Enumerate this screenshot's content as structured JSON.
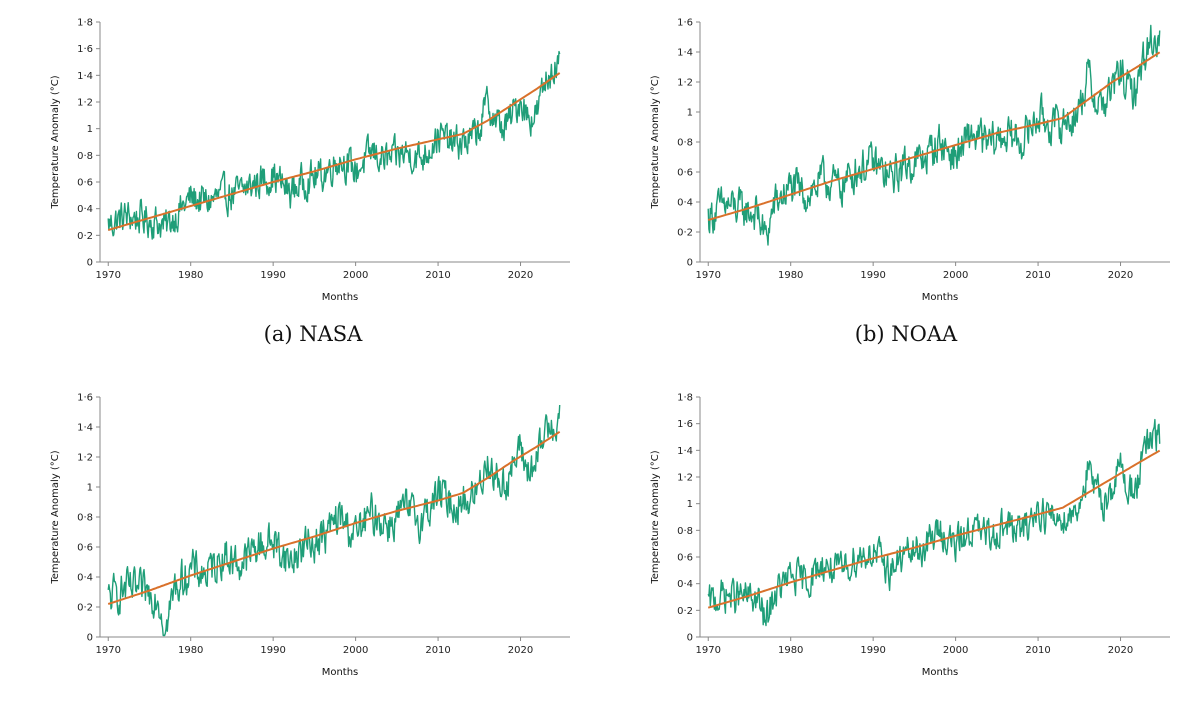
{
  "chart_data": [
    {
      "type": "line",
      "caption": "(a) NASA",
      "xlabel": "Months",
      "ylabel": "Temperature Anomaly (°C)",
      "xlim": [
        1969,
        2026
      ],
      "ylim": [
        0,
        1.8
      ],
      "xticks": [
        "1970",
        "1980",
        "1990",
        "2000",
        "2010",
        "2020"
      ],
      "yticks": [
        "0",
        "0·2",
        "0·4",
        "0·6",
        "0·8",
        "1",
        "1·2",
        "1·4",
        "1·6",
        "1·8"
      ],
      "series": [
        {
          "color": "#1f9e78",
          "x": [
            1970,
            1972,
            1974,
            1976,
            1977,
            1978,
            1980,
            1982,
            1984,
            1986,
            1988,
            1990,
            1992,
            1994,
            1996,
            1998,
            2000,
            2002,
            2004,
            2006,
            2008,
            2010,
            2012,
            2014,
            2015,
            2016,
            2017,
            2018,
            2019,
            2020,
            2021,
            2022,
            2023,
            2024,
            2024.8
          ],
          "y": [
            0.28,
            0.34,
            0.33,
            0.3,
            0.26,
            0.34,
            0.48,
            0.45,
            0.5,
            0.52,
            0.6,
            0.65,
            0.52,
            0.62,
            0.65,
            0.78,
            0.68,
            0.82,
            0.76,
            0.82,
            0.78,
            0.95,
            0.88,
            0.92,
            1.0,
            1.2,
            1.05,
            1.0,
            1.1,
            1.22,
            1.08,
            1.12,
            1.35,
            1.48,
            1.45
          ]
        },
        {
          "color": "#d9712b",
          "x": [
            1970,
            1975,
            1980,
            1985,
            1990,
            1995,
            2000,
            2005,
            2010,
            2013,
            2016,
            2019,
            2022,
            2024.8
          ],
          "y": [
            0.24,
            0.33,
            0.42,
            0.51,
            0.6,
            0.68,
            0.77,
            0.85,
            0.92,
            0.96,
            1.06,
            1.18,
            1.3,
            1.42
          ]
        }
      ]
    },
    {
      "type": "line",
      "caption": "(b) NOAA",
      "xlabel": "Months",
      "ylabel": "Temperature Anomaly (°C)",
      "xlim": [
        1969,
        2026
      ],
      "ylim": [
        0,
        1.6
      ],
      "xticks": [
        "1970",
        "1980",
        "1990",
        "2000",
        "2010",
        "2020"
      ],
      "yticks": [
        "0",
        "0·2",
        "0·4",
        "0·6",
        "0·8",
        "1",
        "1·2",
        "1·4",
        "1·6"
      ],
      "series": [
        {
          "color": "#1f9e78",
          "x": [
            1970,
            1972,
            1974,
            1976,
            1977,
            1978,
            1980,
            1982,
            1984,
            1986,
            1988,
            1990,
            1992,
            1994,
            1996,
            1998,
            2000,
            2002,
            2004,
            2006,
            2008,
            2010,
            2012,
            2014,
            2015,
            2016,
            2017,
            2018,
            2019,
            2020,
            2021,
            2022,
            2023,
            2024,
            2024.8
          ],
          "y": [
            0.3,
            0.38,
            0.35,
            0.32,
            0.15,
            0.38,
            0.5,
            0.45,
            0.55,
            0.5,
            0.62,
            0.66,
            0.55,
            0.65,
            0.68,
            0.8,
            0.7,
            0.85,
            0.78,
            0.85,
            0.8,
            0.98,
            0.9,
            0.95,
            1.02,
            1.25,
            1.08,
            1.05,
            1.15,
            1.28,
            1.12,
            1.18,
            1.4,
            1.5,
            1.48
          ]
        },
        {
          "color": "#d9712b",
          "x": [
            1970,
            1975,
            1980,
            1985,
            1990,
            1995,
            2000,
            2005,
            2010,
            2013,
            2016,
            2019,
            2022,
            2024.8
          ],
          "y": [
            0.28,
            0.36,
            0.45,
            0.54,
            0.62,
            0.7,
            0.78,
            0.86,
            0.92,
            0.96,
            1.08,
            1.2,
            1.3,
            1.4
          ]
        }
      ]
    },
    {
      "type": "line",
      "caption": "",
      "xlabel": "Months",
      "ylabel": "Temperature Anomaly (°C)",
      "xlim": [
        1969,
        2026
      ],
      "ylim": [
        0,
        1.6
      ],
      "xticks": [
        "1970",
        "1980",
        "1990",
        "2000",
        "2010",
        "2020"
      ],
      "yticks": [
        "0",
        "0·2",
        "0·4",
        "0·6",
        "0·8",
        "1",
        "1·2",
        "1·4",
        "1·6"
      ],
      "series": [
        {
          "color": "#1f9e78",
          "x": [
            1970,
            1972,
            1974,
            1976,
            1977,
            1978,
            1980,
            1982,
            1984,
            1986,
            1988,
            1990,
            1992,
            1994,
            1996,
            1998,
            2000,
            2002,
            2004,
            2006,
            2008,
            2010,
            2012,
            2014,
            2015,
            2016,
            2017,
            2018,
            2019,
            2020,
            2021,
            2022,
            2023,
            2024,
            2024.8
          ],
          "y": [
            0.25,
            0.32,
            0.3,
            0.28,
            0.05,
            0.32,
            0.45,
            0.42,
            0.55,
            0.48,
            0.6,
            0.64,
            0.5,
            0.62,
            0.66,
            0.8,
            0.68,
            0.82,
            0.75,
            0.85,
            0.78,
            0.96,
            0.88,
            0.92,
            1.0,
            1.2,
            1.05,
            1.02,
            1.12,
            1.25,
            1.1,
            1.15,
            1.38,
            1.45,
            1.42
          ]
        },
        {
          "color": "#d9712b",
          "x": [
            1970,
            1975,
            1980,
            1985,
            1990,
            1995,
            2000,
            2005,
            2010,
            2013,
            2016,
            2019,
            2022,
            2024.8
          ],
          "y": [
            0.22,
            0.31,
            0.41,
            0.5,
            0.59,
            0.67,
            0.76,
            0.84,
            0.91,
            0.96,
            1.06,
            1.17,
            1.27,
            1.37
          ]
        }
      ]
    },
    {
      "type": "line",
      "caption": "",
      "xlabel": "Months",
      "ylabel": "Temperature Anomaly (°C)",
      "xlim": [
        1969,
        2026
      ],
      "ylim": [
        0,
        1.8
      ],
      "xticks": [
        "1970",
        "1980",
        "1990",
        "2000",
        "2010",
        "2020"
      ],
      "yticks": [
        "0",
        "0·2",
        "0·4",
        "0·6",
        "0·8",
        "1",
        "1·2",
        "1·4",
        "1·6",
        "1·8"
      ],
      "series": [
        {
          "color": "#1f9e78",
          "x": [
            1970,
            1972,
            1974,
            1976,
            1977,
            1978,
            1980,
            1982,
            1984,
            1986,
            1988,
            1990,
            1992,
            1994,
            1996,
            1998,
            2000,
            2002,
            2004,
            2006,
            2008,
            2010,
            2012,
            2014,
            2015,
            2016,
            2017,
            2018,
            2019,
            2020,
            2021,
            2022,
            2023,
            2024,
            2024.8
          ],
          "y": [
            0.25,
            0.32,
            0.3,
            0.28,
            0.1,
            0.32,
            0.45,
            0.42,
            0.55,
            0.48,
            0.6,
            0.64,
            0.5,
            0.62,
            0.66,
            0.8,
            0.68,
            0.82,
            0.75,
            0.85,
            0.78,
            0.96,
            0.88,
            0.92,
            1.0,
            1.25,
            1.08,
            1.02,
            1.12,
            1.28,
            1.1,
            1.15,
            1.4,
            1.5,
            1.48
          ]
        },
        {
          "color": "#d9712b",
          "x": [
            1970,
            1975,
            1980,
            1985,
            1990,
            1995,
            2000,
            2005,
            2010,
            2013,
            2016,
            2019,
            2022,
            2024.8
          ],
          "y": [
            0.22,
            0.31,
            0.41,
            0.5,
            0.59,
            0.67,
            0.76,
            0.84,
            0.92,
            0.97,
            1.08,
            1.19,
            1.3,
            1.4
          ]
        }
      ]
    }
  ]
}
